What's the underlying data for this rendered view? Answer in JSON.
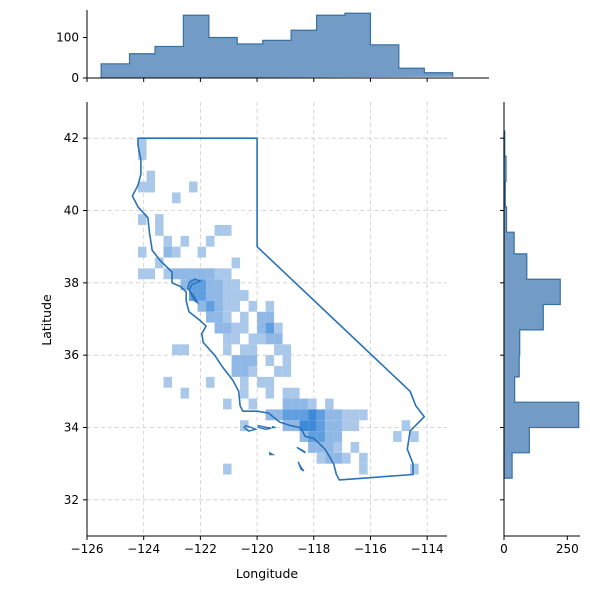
{
  "chart_data": {
    "type": "jointplot",
    "xlabel": "Longitude",
    "ylabel": "Latitude",
    "grid": true,
    "grid_style": "dashed",
    "colors": {
      "hist": "#4a7fb5",
      "hist_edge": "#3a6fa2",
      "heat_light": "#a9c8ea",
      "heat_dark": "#5f9fe0",
      "outline": "#2a72b5",
      "grid": "#cccccc"
    },
    "main": {
      "xlim": [
        -126,
        -113.3
      ],
      "ylim": [
        31,
        43
      ],
      "xticks": [
        -126,
        -124,
        -122,
        -120,
        -118,
        -116,
        -114
      ],
      "xtick_labels": [
        "−126",
        "−124",
        "−122",
        "−120",
        "−118",
        "−116",
        "−114"
      ],
      "yticks": [
        32,
        34,
        36,
        38,
        40,
        42
      ],
      "ytick_labels": [
        "32",
        "34",
        "36",
        "38",
        "40",
        "42"
      ],
      "heatmap_bin_size": 0.3,
      "heatmap_cells": [
        [
          -124.2,
          41.7,
          1
        ],
        [
          -124.2,
          41.4,
          1
        ],
        [
          -124.2,
          40.5,
          1
        ],
        [
          -123.9,
          40.8,
          1
        ],
        [
          -123.9,
          40.5,
          1
        ],
        [
          -122.4,
          40.5,
          1
        ],
        [
          -123.0,
          40.2,
          1
        ],
        [
          -123.6,
          39.6,
          1
        ],
        [
          -124.2,
          39.6,
          1
        ],
        [
          -123.6,
          39.3,
          1
        ],
        [
          -123.3,
          39.0,
          1
        ],
        [
          -121.5,
          39.3,
          1
        ],
        [
          -121.8,
          39.0,
          1
        ],
        [
          -122.7,
          39.0,
          1
        ],
        [
          -121.2,
          39.3,
          1
        ],
        [
          -122.1,
          38.7,
          1
        ],
        [
          -124.2,
          38.7,
          1
        ],
        [
          -123.3,
          38.7,
          2
        ],
        [
          -123.0,
          38.7,
          1
        ],
        [
          -124.2,
          38.1,
          1
        ],
        [
          -123.6,
          38.4,
          1
        ],
        [
          -123.9,
          38.1,
          1
        ],
        [
          -120.9,
          38.4,
          1
        ],
        [
          -121.2,
          38.1,
          1
        ],
        [
          -123.3,
          38.1,
          1
        ],
        [
          -123.0,
          38.1,
          2
        ],
        [
          -122.7,
          38.1,
          2
        ],
        [
          -122.4,
          38.1,
          2
        ],
        [
          -122.1,
          38.1,
          2
        ],
        [
          -121.8,
          38.1,
          2
        ],
        [
          -121.5,
          38.1,
          1
        ],
        [
          -122.7,
          37.8,
          2
        ],
        [
          -122.4,
          37.8,
          3
        ],
        [
          -122.1,
          37.8,
          3
        ],
        [
          -121.8,
          37.8,
          2
        ],
        [
          -121.5,
          37.8,
          2
        ],
        [
          -121.2,
          37.8,
          1
        ],
        [
          -120.9,
          37.8,
          1
        ],
        [
          -122.4,
          37.5,
          3
        ],
        [
          -122.1,
          37.5,
          3
        ],
        [
          -121.8,
          37.5,
          2
        ],
        [
          -121.5,
          37.5,
          2
        ],
        [
          -121.2,
          37.5,
          1
        ],
        [
          -120.9,
          37.5,
          1
        ],
        [
          -120.6,
          37.5,
          1
        ],
        [
          -122.1,
          37.2,
          2
        ],
        [
          -121.8,
          37.2,
          3
        ],
        [
          -121.5,
          37.2,
          2
        ],
        [
          -121.2,
          37.2,
          1
        ],
        [
          -120.9,
          37.2,
          1
        ],
        [
          -120.3,
          37.2,
          1
        ],
        [
          -119.7,
          37.2,
          1
        ],
        [
          -121.8,
          36.9,
          2
        ],
        [
          -121.5,
          36.9,
          2
        ],
        [
          -121.2,
          36.9,
          1
        ],
        [
          -120.6,
          36.9,
          1
        ],
        [
          -120.0,
          36.9,
          2
        ],
        [
          -119.7,
          36.9,
          2
        ],
        [
          -121.5,
          36.6,
          2
        ],
        [
          -121.2,
          36.6,
          2
        ],
        [
          -120.9,
          36.6,
          1
        ],
        [
          -120.6,
          36.6,
          1
        ],
        [
          -120.0,
          36.6,
          2
        ],
        [
          -119.7,
          36.6,
          3
        ],
        [
          -119.4,
          36.6,
          1
        ],
        [
          -121.2,
          36.3,
          1
        ],
        [
          -120.9,
          36.3,
          1
        ],
        [
          -120.3,
          36.3,
          1
        ],
        [
          -120.0,
          36.3,
          1
        ],
        [
          -119.7,
          36.3,
          2
        ],
        [
          -119.4,
          36.3,
          2
        ],
        [
          -121.2,
          36.0,
          1
        ],
        [
          -120.6,
          36.0,
          1
        ],
        [
          -120.3,
          36.0,
          1
        ],
        [
          -119.4,
          36.0,
          1
        ],
        [
          -119.1,
          36.0,
          1
        ],
        [
          -123.0,
          36.0,
          1
        ],
        [
          -122.7,
          36.0,
          1
        ],
        [
          -120.9,
          35.7,
          2
        ],
        [
          -120.6,
          35.7,
          2
        ],
        [
          -120.3,
          35.7,
          2
        ],
        [
          -119.7,
          35.7,
          1
        ],
        [
          -119.1,
          35.7,
          1
        ],
        [
          -120.9,
          35.4,
          2
        ],
        [
          -120.6,
          35.4,
          2
        ],
        [
          -120.3,
          35.4,
          1
        ],
        [
          -119.4,
          35.4,
          1
        ],
        [
          -119.1,
          35.4,
          1
        ],
        [
          -120.6,
          35.1,
          1
        ],
        [
          -120.0,
          35.1,
          1
        ],
        [
          -119.7,
          35.1,
          1
        ],
        [
          -123.3,
          35.1,
          1
        ],
        [
          -121.8,
          35.1,
          1
        ],
        [
          -120.6,
          34.8,
          1
        ],
        [
          -119.7,
          34.8,
          1
        ],
        [
          -119.1,
          34.8,
          1
        ],
        [
          -118.8,
          34.8,
          1
        ],
        [
          -122.7,
          34.8,
          1
        ],
        [
          -121.2,
          34.5,
          1
        ],
        [
          -120.3,
          34.5,
          1
        ],
        [
          -119.1,
          34.5,
          2
        ],
        [
          -118.8,
          34.5,
          2
        ],
        [
          -118.5,
          34.5,
          2
        ],
        [
          -118.2,
          34.5,
          1
        ],
        [
          -117.6,
          34.5,
          1
        ],
        [
          -119.7,
          34.2,
          2
        ],
        [
          -119.4,
          34.2,
          2
        ],
        [
          -119.1,
          34.2,
          3
        ],
        [
          -118.8,
          34.2,
          3
        ],
        [
          -118.5,
          34.2,
          3
        ],
        [
          -118.2,
          34.2,
          4
        ],
        [
          -117.9,
          34.2,
          3
        ],
        [
          -117.6,
          34.2,
          2
        ],
        [
          -117.3,
          34.2,
          2
        ],
        [
          -117.0,
          34.2,
          1
        ],
        [
          -116.7,
          34.2,
          1
        ],
        [
          -116.4,
          34.2,
          1
        ],
        [
          -120.6,
          33.9,
          1
        ],
        [
          -119.1,
          33.9,
          2
        ],
        [
          -118.8,
          33.9,
          2
        ],
        [
          -118.5,
          33.9,
          4
        ],
        [
          -118.2,
          33.9,
          4
        ],
        [
          -117.9,
          33.9,
          3
        ],
        [
          -117.6,
          33.9,
          2
        ],
        [
          -117.3,
          33.9,
          2
        ],
        [
          -117.0,
          33.9,
          1
        ],
        [
          -116.7,
          33.9,
          1
        ],
        [
          -114.9,
          33.9,
          1
        ],
        [
          -118.5,
          33.6,
          2
        ],
        [
          -118.2,
          33.6,
          3
        ],
        [
          -117.9,
          33.6,
          3
        ],
        [
          -117.6,
          33.6,
          2
        ],
        [
          -117.3,
          33.6,
          2
        ],
        [
          -115.2,
          33.6,
          1
        ],
        [
          -114.6,
          33.6,
          1
        ],
        [
          -118.2,
          33.3,
          2
        ],
        [
          -117.9,
          33.3,
          2
        ],
        [
          -117.6,
          33.3,
          2
        ],
        [
          -117.3,
          33.3,
          1
        ],
        [
          -116.7,
          33.3,
          1
        ],
        [
          -117.9,
          33.0,
          1
        ],
        [
          -117.6,
          33.0,
          2
        ],
        [
          -117.3,
          33.0,
          2
        ],
        [
          -117.0,
          33.0,
          1
        ],
        [
          -116.4,
          33.0,
          1
        ],
        [
          -121.2,
          32.7,
          1
        ],
        [
          -116.4,
          32.7,
          1
        ],
        [
          -114.6,
          32.7,
          1
        ]
      ]
    },
    "top_hist": {
      "yticks": [
        0,
        100
      ],
      "ytick_labels": [
        "0",
        "100"
      ],
      "ylim": [
        0,
        168
      ],
      "bins": [
        -125.5,
        -124.5,
        -123.6,
        -122.6,
        -121.7,
        -120.7,
        -119.8,
        -118.8,
        -117.9,
        -116.9,
        -116.0,
        -115.0,
        -114.1,
        -113.1
      ],
      "counts": [
        35,
        60,
        78,
        155,
        100,
        84,
        93,
        118,
        155,
        160,
        82,
        24,
        13,
        3
      ]
    },
    "right_hist": {
      "xticks": [
        0,
        250
      ],
      "xtick_labels": [
        "0",
        "250"
      ],
      "xlim": [
        0,
        300
      ],
      "bins": [
        32.6,
        33.3,
        34.0,
        34.7,
        35.4,
        36.0,
        36.7,
        37.4,
        38.1,
        38.8,
        39.4,
        40.1,
        40.8,
        41.5,
        42.2
      ],
      "counts": [
        32,
        100,
        295,
        42,
        60,
        62,
        155,
        222,
        90,
        40,
        10,
        5,
        8,
        3
      ]
    },
    "outline": {
      "california": [
        [
          -124.2,
          42.0
        ],
        [
          -120.0,
          42.0
        ],
        [
          -120.0,
          39.0
        ],
        [
          -114.6,
          35.0
        ],
        [
          -114.4,
          34.6
        ],
        [
          -114.1,
          34.3
        ],
        [
          -114.6,
          33.9
        ],
        [
          -114.7,
          33.4
        ],
        [
          -114.5,
          33.0
        ],
        [
          -114.5,
          32.7
        ],
        [
          -117.1,
          32.55
        ],
        [
          -117.2,
          32.7
        ],
        [
          -117.3,
          33.0
        ],
        [
          -117.6,
          33.4
        ],
        [
          -118.0,
          33.7
        ],
        [
          -118.3,
          33.75
        ],
        [
          -118.4,
          33.9
        ],
        [
          -118.5,
          34.0
        ],
        [
          -118.8,
          34.05
        ],
        [
          -119.2,
          34.15
        ],
        [
          -119.6,
          34.4
        ],
        [
          -120.0,
          34.45
        ],
        [
          -120.5,
          34.45
        ],
        [
          -120.6,
          34.6
        ],
        [
          -120.65,
          35.0
        ],
        [
          -120.85,
          35.3
        ],
        [
          -121.2,
          35.65
        ],
        [
          -121.5,
          36.0
        ],
        [
          -121.9,
          36.35
        ],
        [
          -121.95,
          36.6
        ],
        [
          -121.8,
          36.8
        ],
        [
          -122.0,
          36.95
        ],
        [
          -122.4,
          37.2
        ],
        [
          -122.5,
          37.5
        ],
        [
          -122.5,
          37.75
        ],
        [
          -122.7,
          37.9
        ],
        [
          -123.0,
          38.0
        ],
        [
          -123.0,
          38.3
        ],
        [
          -123.4,
          38.6
        ],
        [
          -123.7,
          38.9
        ],
        [
          -123.8,
          39.4
        ],
        [
          -123.85,
          39.8
        ],
        [
          -124.2,
          40.1
        ],
        [
          -124.4,
          40.4
        ],
        [
          -124.2,
          40.7
        ],
        [
          -124.1,
          41.0
        ],
        [
          -124.1,
          41.4
        ],
        [
          -124.2,
          41.8
        ],
        [
          -124.2,
          42.0
        ]
      ],
      "bay": [
        [
          -122.4,
          37.8
        ],
        [
          -122.3,
          37.95
        ],
        [
          -122.0,
          38.05
        ],
        [
          -122.2,
          38.1
        ],
        [
          -122.4,
          38.0
        ],
        [
          -122.45,
          37.85
        ],
        [
          -122.2,
          37.6
        ],
        [
          -122.1,
          37.45
        ],
        [
          -122.2,
          37.5
        ],
        [
          -122.4,
          37.8
        ]
      ],
      "islands": [
        [
          [
            -120.4,
            34.05
          ],
          [
            -120.2,
            34.0
          ],
          [
            -120.05,
            33.95
          ],
          [
            -120.3,
            33.9
          ],
          [
            -120.45,
            34.0
          ],
          [
            -120.4,
            34.05
          ]
        ],
        [
          [
            -119.95,
            34.05
          ],
          [
            -119.65,
            34.0
          ],
          [
            -119.5,
            33.98
          ],
          [
            -119.7,
            33.95
          ],
          [
            -119.95,
            34.0
          ],
          [
            -119.95,
            34.05
          ]
        ],
        [
          [
            -119.45,
            34.02
          ],
          [
            -119.35,
            34.0
          ],
          [
            -119.45,
            34.0
          ],
          [
            -119.45,
            34.02
          ]
        ],
        [
          [
            -118.6,
            33.45
          ],
          [
            -118.35,
            33.35
          ],
          [
            -118.3,
            33.3
          ],
          [
            -118.5,
            33.4
          ],
          [
            -118.6,
            33.45
          ]
        ],
        [
          [
            -118.55,
            33.05
          ],
          [
            -118.45,
            32.9
          ],
          [
            -118.35,
            32.8
          ],
          [
            -118.45,
            32.85
          ],
          [
            -118.55,
            33.05
          ]
        ],
        [
          [
            -119.55,
            33.3
          ],
          [
            -119.45,
            33.25
          ],
          [
            -119.55,
            33.25
          ],
          [
            -119.55,
            33.3
          ]
        ]
      ]
    }
  }
}
